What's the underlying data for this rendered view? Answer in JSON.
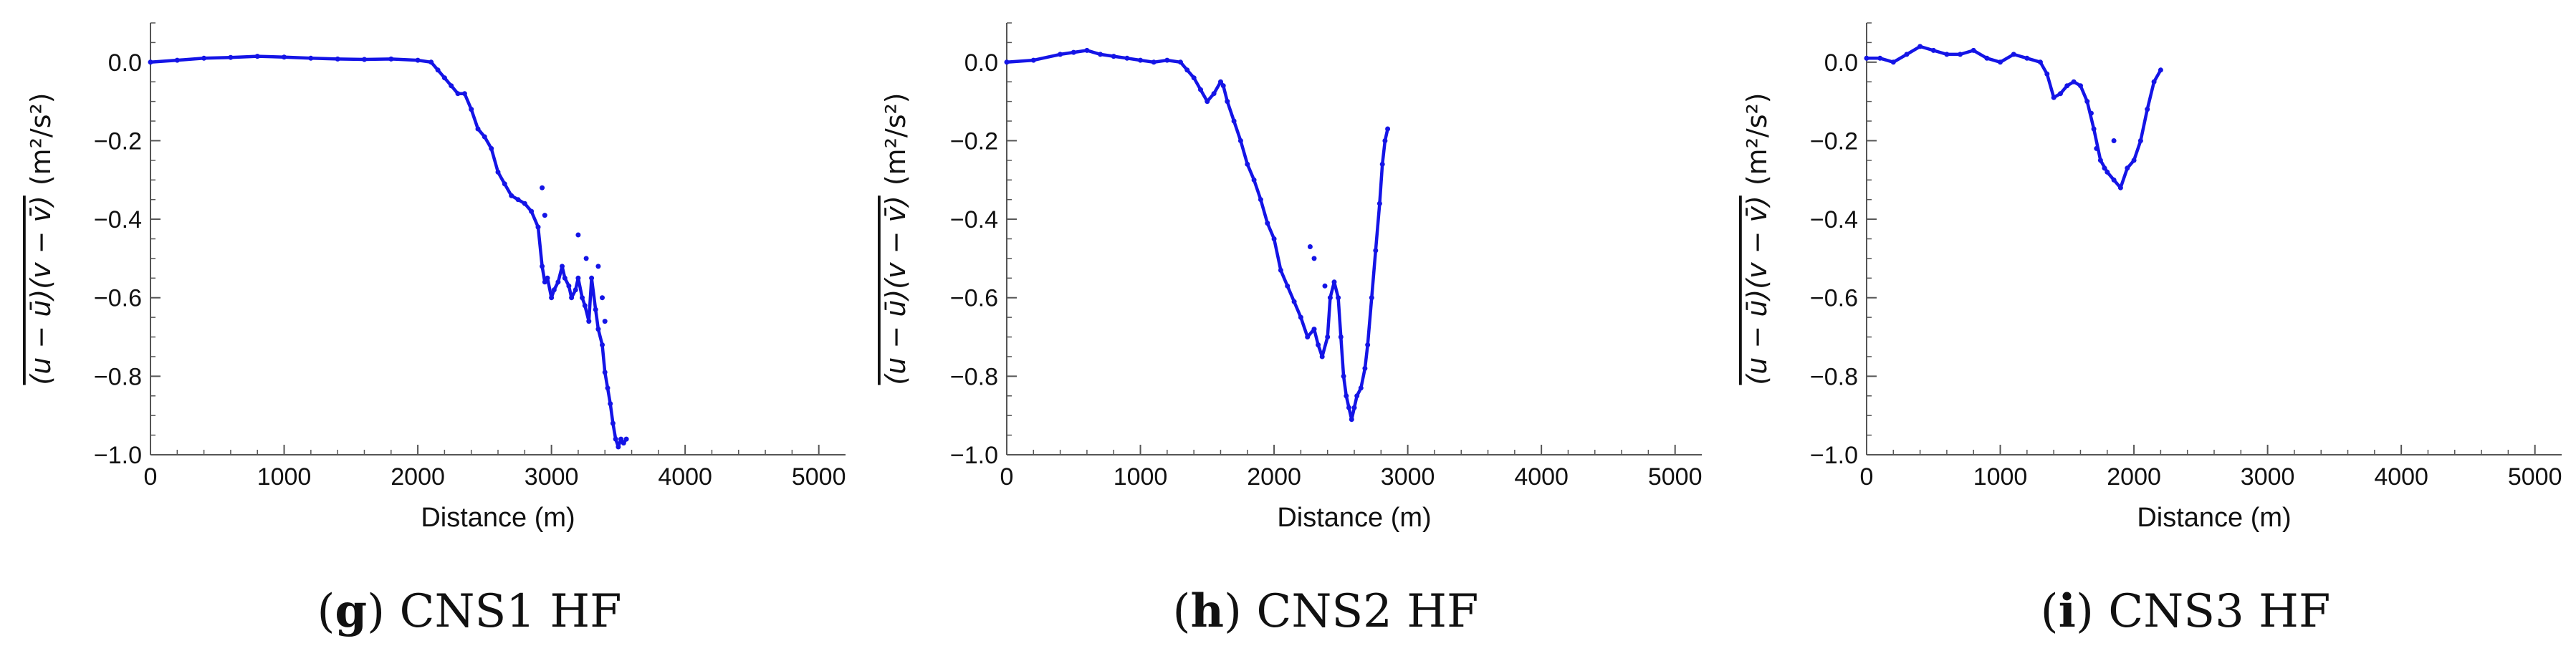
{
  "colors": {
    "series": "#1414e6",
    "axis": "#555555",
    "text": "#111111"
  },
  "chart_data": [
    {
      "type": "scatter",
      "caption_letter": "g",
      "caption_text": "CNS1 HF",
      "xlabel": "Distance (m)",
      "ylabel_main": "(u − ū)(v − v̄)",
      "ylabel_unit": "(m²/s²)",
      "xlim": [
        0,
        5200
      ],
      "ylim": [
        -1.0,
        0.1
      ],
      "xticks": [
        0,
        1000,
        2000,
        3000,
        4000,
        5000
      ],
      "yticks": [
        0.0,
        -0.2,
        -0.4,
        -0.6,
        -0.8,
        -1.0
      ],
      "ytick_labels": [
        "0.0",
        "−0.2",
        "−0.4",
        "−0.6",
        "−0.8",
        "−1.0"
      ],
      "series": [
        {
          "x": [
            0,
            200,
            400,
            600,
            800,
            1000,
            1200,
            1400,
            1600,
            1800,
            2000,
            2100,
            2150,
            2200,
            2250,
            2300,
            2350,
            2400,
            2450,
            2500,
            2550,
            2600,
            2650,
            2700,
            2750,
            2800,
            2850,
            2900,
            2930,
            2950,
            2970,
            3000,
            3020,
            3050,
            3080,
            3100,
            3130,
            3150,
            3180,
            3200,
            3230,
            3250,
            3280,
            3300,
            3330,
            3350,
            3380,
            3400,
            3420,
            3440,
            3460,
            3480,
            3500,
            3520,
            3540,
            3560
          ],
          "y": [
            0.0,
            0.005,
            0.01,
            0.012,
            0.015,
            0.013,
            0.01,
            0.008,
            0.007,
            0.008,
            0.005,
            0.0,
            -0.02,
            -0.04,
            -0.06,
            -0.08,
            -0.08,
            -0.12,
            -0.17,
            -0.19,
            -0.22,
            -0.28,
            -0.31,
            -0.34,
            -0.35,
            -0.36,
            -0.38,
            -0.42,
            -0.52,
            -0.56,
            -0.55,
            -0.6,
            -0.58,
            -0.56,
            -0.52,
            -0.55,
            -0.57,
            -0.6,
            -0.58,
            -0.55,
            -0.6,
            -0.62,
            -0.66,
            -0.55,
            -0.63,
            -0.68,
            -0.72,
            -0.79,
            -0.83,
            -0.87,
            -0.92,
            -0.96,
            -0.98,
            -0.96,
            -0.97,
            -0.96
          ]
        },
        {
          "x": [
            2930,
            2950,
            3200,
            3260,
            3350,
            3380,
            3400
          ],
          "y": [
            -0.32,
            -0.39,
            -0.44,
            -0.5,
            -0.52,
            -0.6,
            -0.66
          ]
        }
      ]
    },
    {
      "type": "scatter",
      "caption_letter": "h",
      "caption_text": "CNS2 HF",
      "xlabel": "Distance (m)",
      "ylabel_main": "(u − ū)(v − v̄)",
      "ylabel_unit": "(m²/s²)",
      "xlim": [
        0,
        5200
      ],
      "ylim": [
        -1.0,
        0.1
      ],
      "xticks": [
        0,
        1000,
        2000,
        3000,
        4000,
        5000
      ],
      "yticks": [
        0.0,
        -0.2,
        -0.4,
        -0.6,
        -0.8,
        -1.0
      ],
      "ytick_labels": [
        "0.0",
        "−0.2",
        "−0.4",
        "−0.6",
        "−0.8",
        "−1.0"
      ],
      "series": [
        {
          "x": [
            0,
            200,
            400,
            500,
            600,
            700,
            800,
            900,
            1000,
            1100,
            1200,
            1300,
            1350,
            1400,
            1450,
            1500,
            1550,
            1600,
            1620,
            1650,
            1700,
            1750,
            1800,
            1850,
            1900,
            1950,
            2000,
            2050,
            2100,
            2150,
            2200,
            2250,
            2300,
            2330,
            2360,
            2400,
            2420,
            2450,
            2480,
            2500,
            2520,
            2540,
            2560,
            2580,
            2600,
            2620,
            2650,
            2680,
            2700,
            2730,
            2760,
            2790,
            2810,
            2830,
            2850
          ],
          "y": [
            0.0,
            0.005,
            0.02,
            0.025,
            0.03,
            0.02,
            0.015,
            0.01,
            0.005,
            0.0,
            0.005,
            0.0,
            -0.02,
            -0.04,
            -0.07,
            -0.1,
            -0.08,
            -0.05,
            -0.06,
            -0.1,
            -0.15,
            -0.2,
            -0.26,
            -0.3,
            -0.35,
            -0.41,
            -0.45,
            -0.53,
            -0.57,
            -0.61,
            -0.65,
            -0.7,
            -0.68,
            -0.72,
            -0.75,
            -0.7,
            -0.6,
            -0.56,
            -0.6,
            -0.7,
            -0.8,
            -0.85,
            -0.88,
            -0.91,
            -0.88,
            -0.85,
            -0.83,
            -0.78,
            -0.72,
            -0.6,
            -0.48,
            -0.36,
            -0.26,
            -0.2,
            -0.17
          ]
        },
        {
          "x": [
            2270,
            2300,
            2380
          ],
          "y": [
            -0.47,
            -0.5,
            -0.57
          ]
        }
      ]
    },
    {
      "type": "scatter",
      "caption_letter": "i",
      "caption_text": "CNS3 HF",
      "xlabel": "Distance (m)",
      "ylabel_main": "(u − ū)(v − v̄)",
      "ylabel_unit": "(m²/s²)",
      "xlim": [
        0,
        5200
      ],
      "ylim": [
        -1.0,
        0.1
      ],
      "xticks": [
        0,
        1000,
        2000,
        3000,
        4000,
        5000
      ],
      "yticks": [
        0.0,
        -0.2,
        -0.4,
        -0.6,
        -0.8,
        -1.0
      ],
      "ytick_labels": [
        "0.0",
        "−0.2",
        "−0.4",
        "−0.6",
        "−0.8",
        "−1.0"
      ],
      "series": [
        {
          "x": [
            0,
            100,
            200,
            300,
            400,
            500,
            600,
            700,
            800,
            900,
            1000,
            1100,
            1200,
            1300,
            1350,
            1400,
            1450,
            1500,
            1550,
            1600,
            1650,
            1700,
            1750,
            1800,
            1850,
            1900,
            1950,
            2000,
            2050,
            2100,
            2150,
            2200
          ],
          "y": [
            0.01,
            0.01,
            0.0,
            0.02,
            0.04,
            0.03,
            0.02,
            0.02,
            0.03,
            0.01,
            0.0,
            0.02,
            0.01,
            0.0,
            -0.03,
            -0.09,
            -0.08,
            -0.06,
            -0.05,
            -0.06,
            -0.1,
            -0.17,
            -0.25,
            -0.28,
            -0.3,
            -0.32,
            -0.27,
            -0.25,
            -0.2,
            -0.12,
            -0.05,
            -0.02
          ]
        },
        {
          "x": [
            1680,
            1720,
            1780,
            1850
          ],
          "y": [
            -0.13,
            -0.22,
            -0.27,
            -0.2
          ]
        }
      ]
    }
  ]
}
